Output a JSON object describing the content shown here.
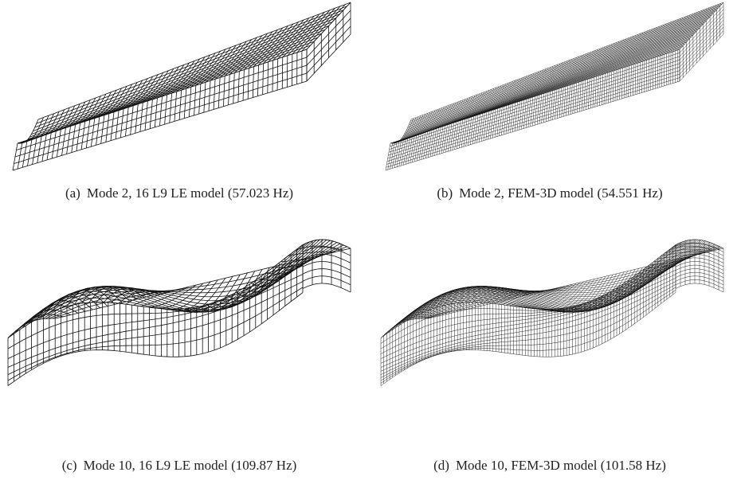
{
  "figure": {
    "panels": [
      {
        "label": "(a)",
        "caption": "Mode 2, 16 L9 LE model (57.023 Hz)"
      },
      {
        "label": "(b)",
        "caption": "Mode 2, FEM-3D model (54.551 Hz)"
      },
      {
        "label": "(c)",
        "caption": "Mode 10, 16 L9 LE model (109.87 Hz)"
      },
      {
        "label": "(d)",
        "caption": "Mode 10, FEM-3D model (101.58 Hz)"
      }
    ]
  }
}
